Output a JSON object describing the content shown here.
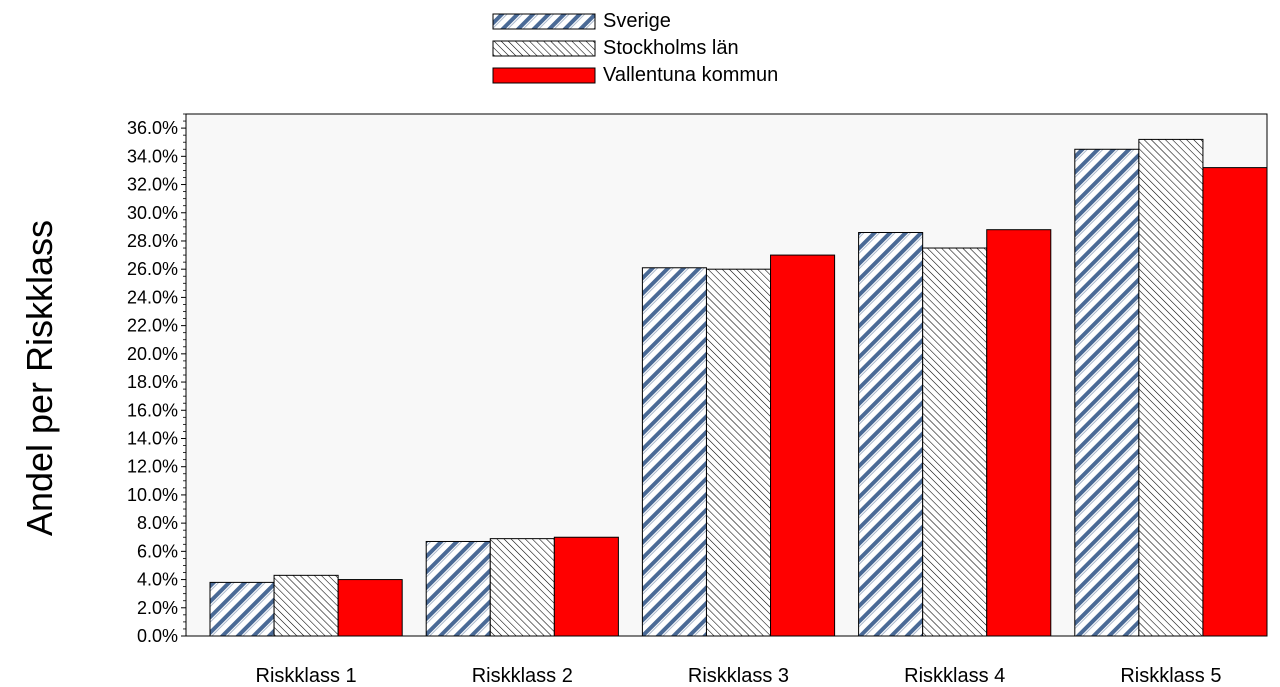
{
  "chart_data": {
    "type": "bar",
    "title": "",
    "xlabel": "",
    "ylabel": "Andel per Riskklass",
    "categories": [
      "Riskklass 1",
      "Riskklass 2",
      "Riskklass 3",
      "Riskklass 4",
      "Riskklass 5"
    ],
    "series": [
      {
        "name": "Sverige",
        "values": [
          3.8,
          6.7,
          26.1,
          28.6,
          34.5
        ],
        "pattern": "diagonal-blue-stripes",
        "color": "#4a6a96"
      },
      {
        "name": "Stockholms län",
        "values": [
          4.3,
          6.9,
          26.0,
          27.5,
          35.2
        ],
        "pattern": "thin-hatch",
        "color": "#000000"
      },
      {
        "name": "Vallentuna kommun",
        "values": [
          4.0,
          7.0,
          27.0,
          28.8,
          33.2
        ],
        "pattern": "solid",
        "color": "#ff0000"
      }
    ],
    "ylim": [
      0,
      37
    ],
    "yticks": [
      "0.0%",
      "2.0%",
      "4.0%",
      "6.0%",
      "8.0%",
      "10.0%",
      "12.0%",
      "14.0%",
      "16.0%",
      "18.0%",
      "20.0%",
      "22.0%",
      "24.0%",
      "26.0%",
      "28.0%",
      "30.0%",
      "32.0%",
      "34.0%",
      "36.0%"
    ],
    "ytick_values": [
      0,
      2,
      4,
      6,
      8,
      10,
      12,
      14,
      16,
      18,
      20,
      22,
      24,
      26,
      28,
      30,
      32,
      34,
      36
    ],
    "grid": false,
    "legend": "top-center",
    "plot_background": "#f8f8f8"
  }
}
